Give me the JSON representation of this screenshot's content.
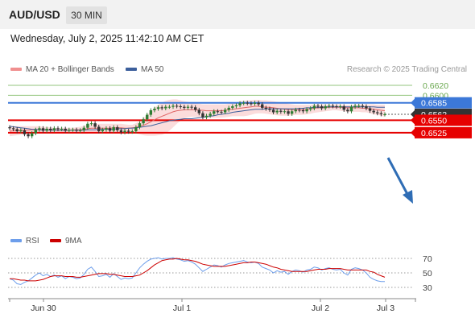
{
  "header": {
    "symbol": "AUD/USD",
    "timeframe": "30 MIN"
  },
  "date_line": "Wednesday, July 2, 2025 11:42:10 AM CET",
  "legend": {
    "ma20_label": "MA 20 + Bollinger Bands",
    "ma50_label": "MA 50",
    "rsi_label": "RSI",
    "ma9_label": "9MA",
    "copyright": "Research © 2025 Trading Central"
  },
  "colors": {
    "ma20": "#e06666",
    "bollinger_fill": "#fbdcdc",
    "ma50": "#3c5f9c",
    "support": "#e60000",
    "resistance_blue": "#3c78d8",
    "target_green": "#93c47d",
    "candle_up": "#2e7d32",
    "candle_down": "#333333",
    "rsi": "#6d9eeb",
    "ma9": "#cc0000"
  },
  "chart_data": [
    {
      "type": "candlestick",
      "y_axis_range": [
        0.6505,
        0.663
      ],
      "x_ticks": [
        "Jun 30",
        "Jul 1",
        "Jul 2",
        "Jul 3"
      ],
      "levels": [
        {
          "label": "0.6620",
          "value": 0.662,
          "kind": "target"
        },
        {
          "label": "0.6600",
          "value": 0.66,
          "kind": "target"
        },
        {
          "label": "0.6585",
          "value": 0.6585,
          "kind": "resistance"
        },
        {
          "label": "0.6562",
          "value": 0.6562,
          "kind": "last_price"
        },
        {
          "label": "0.6550",
          "value": 0.655,
          "kind": "pivot"
        },
        {
          "label": "0.6525",
          "value": 0.6525,
          "kind": "support"
        }
      ],
      "close": [
        0.6534,
        0.6532,
        0.6528,
        0.653,
        0.6522,
        0.6518,
        0.6524,
        0.6531,
        0.6534,
        0.6529,
        0.6533,
        0.653,
        0.6534,
        0.6532,
        0.6533,
        0.6529,
        0.6531,
        0.6531,
        0.6529,
        0.653,
        0.6535,
        0.6543,
        0.6544,
        0.6537,
        0.6528,
        0.6531,
        0.6534,
        0.6529,
        0.6536,
        0.653,
        0.6526,
        0.6529,
        0.6527,
        0.6528,
        0.6536,
        0.6544,
        0.6552,
        0.6561,
        0.657,
        0.6573,
        0.6576,
        0.6574,
        0.6577,
        0.6577,
        0.6579,
        0.6578,
        0.6577,
        0.6575,
        0.6577,
        0.6576,
        0.6571,
        0.6564,
        0.6556,
        0.6559,
        0.6563,
        0.6568,
        0.6567,
        0.6566,
        0.6571,
        0.6575,
        0.6578,
        0.658,
        0.6584,
        0.6585,
        0.6584,
        0.6583,
        0.6585,
        0.6582,
        0.6575,
        0.6573,
        0.6571,
        0.6566,
        0.6569,
        0.6567,
        0.6568,
        0.6563,
        0.6568,
        0.6571,
        0.657,
        0.6568,
        0.6572,
        0.6574,
        0.6579,
        0.6578,
        0.6574,
        0.6578,
        0.6579,
        0.6578,
        0.6577,
        0.6578,
        0.6571,
        0.6568,
        0.6577,
        0.6579,
        0.6579,
        0.6578,
        0.6574,
        0.6569,
        0.6566,
        0.6564,
        0.6562,
        0.6562
      ],
      "ma20": [
        0.6528,
        0.6529,
        0.6529,
        0.653,
        0.653,
        0.653,
        0.6531,
        0.6531,
        0.6531,
        0.6531,
        0.6531,
        0.6531,
        0.6531,
        0.653,
        0.653,
        0.653,
        0.653,
        0.6531,
        0.6531,
        0.6531,
        0.6532,
        0.6533,
        0.6534,
        0.6534,
        0.6534,
        0.6534,
        0.6534,
        0.6534,
        0.6535,
        0.6535,
        0.6535,
        0.6534,
        0.6534,
        0.6535,
        0.6536,
        0.6538,
        0.654,
        0.6543,
        0.6547,
        0.6551,
        0.6555,
        0.6558,
        0.6561,
        0.6564,
        0.6567,
        0.6569,
        0.657,
        0.6571,
        0.6571,
        0.6571,
        0.6571,
        0.657,
        0.657,
        0.6569,
        0.6569,
        0.6569,
        0.6569,
        0.6569,
        0.657,
        0.6571,
        0.6572,
        0.6573,
        0.6574,
        0.6575,
        0.6576,
        0.6577,
        0.6578,
        0.6578,
        0.6577,
        0.6576,
        0.6576,
        0.6575,
        0.6574,
        0.6573,
        0.6572,
        0.6571,
        0.6571,
        0.6571,
        0.6571,
        0.6571,
        0.6572,
        0.6573,
        0.6574,
        0.6575,
        0.6575,
        0.6575,
        0.6576,
        0.6576,
        0.6576,
        0.6576,
        0.6575,
        0.6575,
        0.6575,
        0.6575,
        0.6575,
        0.6574,
        0.6574,
        0.6573,
        0.6572,
        0.6571,
        0.657,
        0.6569
      ],
      "ma50": [
        0.6538,
        0.6537,
        0.6536,
        0.6535,
        0.6534,
        0.6533,
        0.6532,
        0.6532,
        0.6531,
        0.6531,
        0.6531,
        0.653,
        0.653,
        0.653,
        0.653,
        0.653,
        0.653,
        0.653,
        0.653,
        0.653,
        0.653,
        0.6531,
        0.6531,
        0.6531,
        0.6532,
        0.6532,
        0.6532,
        0.6532,
        0.6532,
        0.6533,
        0.6533,
        0.6533,
        0.6534,
        0.6534,
        0.6535,
        0.6536,
        0.6537,
        0.6538,
        0.6539,
        0.6541,
        0.6543,
        0.6545,
        0.6547,
        0.6549,
        0.655,
        0.6551,
        0.6552,
        0.6553,
        0.6553,
        0.6553,
        0.6554,
        0.6555,
        0.6556,
        0.6557,
        0.6558,
        0.6559,
        0.6561,
        0.6562,
        0.6563,
        0.6564,
        0.6566,
        0.6567,
        0.6568,
        0.6569,
        0.657,
        0.6571,
        0.6572,
        0.6572,
        0.6572,
        0.6573,
        0.6573,
        0.6573,
        0.6573,
        0.6573,
        0.6573,
        0.6573,
        0.6573,
        0.6573,
        0.6574,
        0.6574,
        0.6575,
        0.6575,
        0.6576,
        0.6576,
        0.6576,
        0.6577,
        0.6577,
        0.6577,
        0.6577,
        0.6577,
        0.6577,
        0.6577,
        0.6577,
        0.6577,
        0.6577,
        0.6577,
        0.6577,
        0.6577,
        0.6577,
        0.6576,
        0.6576,
        0.6576
      ],
      "bb_upper": [
        0.6538,
        0.6538,
        0.6538,
        0.6538,
        0.6538,
        0.6538,
        0.6538,
        0.6538,
        0.6538,
        0.6537,
        0.6537,
        0.6536,
        0.6535,
        0.6535,
        0.6535,
        0.6535,
        0.6535,
        0.6535,
        0.6536,
        0.6537,
        0.6539,
        0.6541,
        0.6543,
        0.6543,
        0.6543,
        0.6543,
        0.6543,
        0.6543,
        0.6543,
        0.6543,
        0.6543,
        0.6542,
        0.6541,
        0.6541,
        0.6544,
        0.6548,
        0.6554,
        0.6561,
        0.6568,
        0.6575,
        0.6581,
        0.6586,
        0.6589,
        0.6591,
        0.6592,
        0.6592,
        0.659,
        0.6588,
        0.6587,
        0.6585,
        0.6584,
        0.6583,
        0.6582,
        0.6582,
        0.6582,
        0.6582,
        0.6582,
        0.6582,
        0.6582,
        0.6583,
        0.6584,
        0.6586,
        0.6588,
        0.6589,
        0.659,
        0.659,
        0.6591,
        0.6591,
        0.659,
        0.659,
        0.6589,
        0.6588,
        0.6587,
        0.6586,
        0.6585,
        0.6583,
        0.6582,
        0.6581,
        0.6581,
        0.6581,
        0.6581,
        0.6581,
        0.6582,
        0.6582,
        0.6582,
        0.6582,
        0.6582,
        0.6582,
        0.6582,
        0.6582,
        0.6581,
        0.6581,
        0.6581,
        0.6582,
        0.6582,
        0.6582,
        0.6582,
        0.6582,
        0.6582,
        0.6581,
        0.6581,
        0.6581
      ],
      "bb_lower": [
        0.6518,
        0.6519,
        0.652,
        0.6521,
        0.6522,
        0.6522,
        0.6523,
        0.6524,
        0.6524,
        0.6524,
        0.6525,
        0.6525,
        0.6526,
        0.6526,
        0.6526,
        0.6525,
        0.6524,
        0.6524,
        0.6524,
        0.6523,
        0.6523,
        0.6523,
        0.6524,
        0.6524,
        0.6525,
        0.6525,
        0.6525,
        0.6525,
        0.6526,
        0.6526,
        0.6526,
        0.6525,
        0.6525,
        0.6525,
        0.6524,
        0.6522,
        0.652,
        0.6519,
        0.6519,
        0.6519,
        0.652,
        0.6521,
        0.6524,
        0.6529,
        0.6536,
        0.6543,
        0.6549,
        0.6554,
        0.6556,
        0.6557,
        0.6557,
        0.6556,
        0.6556,
        0.6555,
        0.6555,
        0.6555,
        0.6555,
        0.6555,
        0.6556,
        0.6557,
        0.6558,
        0.6558,
        0.6558,
        0.6558,
        0.6559,
        0.6561,
        0.6563,
        0.6564,
        0.6564,
        0.6563,
        0.6562,
        0.6561,
        0.656,
        0.6559,
        0.6559,
        0.6559,
        0.656,
        0.6561,
        0.6561,
        0.6561,
        0.6562,
        0.6563,
        0.6565,
        0.6566,
        0.6567,
        0.6568,
        0.6569,
        0.657,
        0.657,
        0.6569,
        0.6568,
        0.6567,
        0.6567,
        0.6567,
        0.6567,
        0.6566,
        0.6566,
        0.6564,
        0.6562,
        0.6561,
        0.6559,
        0.6557
      ]
    },
    {
      "type": "line",
      "y_axis_range": [
        20,
        80
      ],
      "y_ticks": [
        70,
        50,
        30
      ],
      "series": [
        {
          "name": "RSI",
          "values": [
            42,
            40,
            35,
            34,
            37,
            39,
            43,
            47,
            50,
            46,
            48,
            45,
            47,
            44,
            46,
            42,
            45,
            44,
            42,
            43,
            48,
            55,
            58,
            52,
            45,
            46,
            48,
            44,
            49,
            45,
            41,
            43,
            42,
            43,
            50,
            57,
            62,
            66,
            69,
            70,
            71,
            69,
            70,
            70,
            71,
            69,
            68,
            66,
            67,
            65,
            62,
            57,
            52,
            55,
            58,
            61,
            60,
            58,
            61,
            63,
            64,
            65,
            66,
            67,
            65,
            64,
            65,
            63,
            58,
            56,
            54,
            50,
            53,
            51,
            52,
            48,
            52,
            54,
            53,
            51,
            54,
            55,
            58,
            57,
            54,
            56,
            57,
            55,
            54,
            55,
            50,
            47,
            55,
            57,
            56,
            54,
            50,
            44,
            41,
            39,
            38,
            38
          ]
        },
        {
          "name": "9MA",
          "values": [
            42,
            42,
            41,
            40,
            40,
            39,
            39,
            39,
            40,
            41,
            43,
            45,
            46,
            46,
            46,
            45,
            45,
            45,
            44,
            44,
            45,
            46,
            47,
            48,
            49,
            49,
            49,
            48,
            48,
            47,
            46,
            45,
            45,
            45,
            46,
            47,
            50,
            53,
            57,
            61,
            64,
            67,
            68,
            69,
            69,
            70,
            69,
            68,
            68,
            67,
            66,
            64,
            62,
            61,
            60,
            59,
            59,
            59,
            59,
            60,
            61,
            62,
            63,
            64,
            64,
            65,
            65,
            64,
            63,
            62,
            60,
            58,
            57,
            55,
            54,
            53,
            52,
            52,
            52,
            52,
            52,
            53,
            54,
            55,
            55,
            55,
            56,
            56,
            56,
            56,
            55,
            54,
            54,
            54,
            54,
            54,
            54,
            52,
            51,
            48,
            46,
            44
          ]
        }
      ]
    }
  ]
}
